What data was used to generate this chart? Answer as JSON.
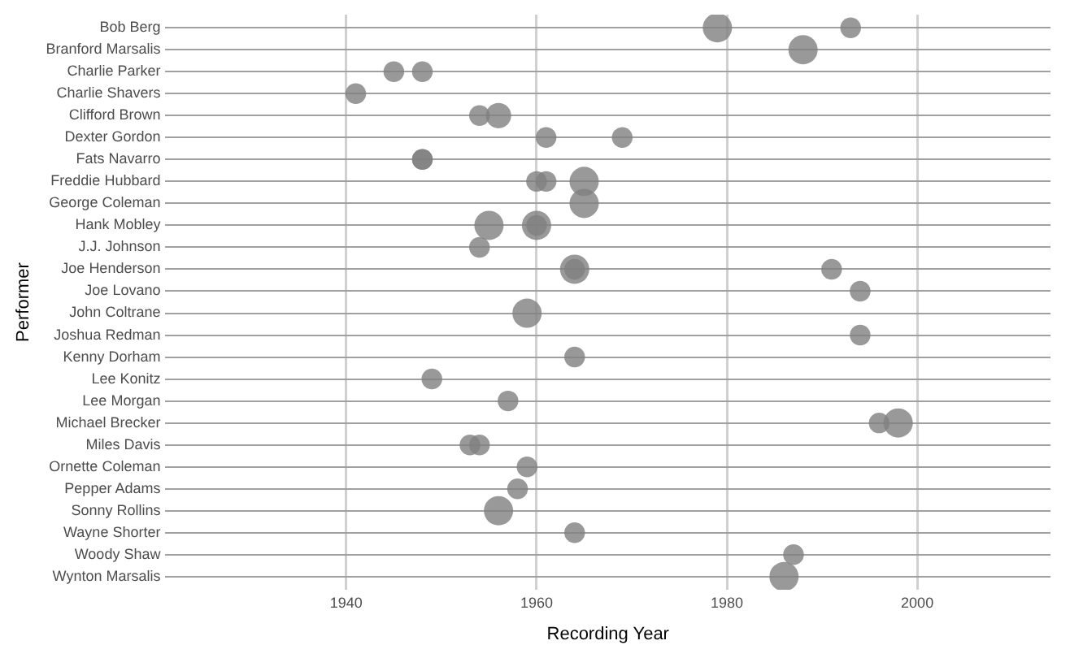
{
  "chart_data": {
    "type": "bubble",
    "orientation": "horizontal",
    "xlabel": "Recording Year",
    "ylabel": "Performer",
    "categories": [
      "Bob Berg",
      "Branford Marsalis",
      "Charlie Parker",
      "Charlie Shavers",
      "Clifford Brown",
      "Dexter Gordon",
      "Fats Navarro",
      "Freddie Hubbard",
      "George Coleman",
      "Hank Mobley",
      "J.J. Johnson",
      "Joe Henderson",
      "Joe Lovano",
      "John Coltrane",
      "Joshua Redman",
      "Kenny Dorham",
      "Lee Konitz",
      "Lee Morgan",
      "Michael Brecker",
      "Miles Davis",
      "Ornette Coleman",
      "Pepper Adams",
      "Sonny Rollins",
      "Wayne Shorter",
      "Woody Shaw",
      "Wynton Marsalis"
    ],
    "series": [
      {
        "color": "#808080",
        "values": [
          1979,
          1988,
          1945,
          1941,
          1954,
          1961,
          1948,
          1960,
          1965,
          1955,
          1954,
          1964,
          1994,
          1959,
          1994,
          1964,
          1949,
          1957,
          1996,
          1953,
          1959,
          1958,
          1956,
          1964,
          1987,
          1986
        ],
        "sizes": [
          1,
          1,
          0.5,
          0.5,
          0.5,
          0.5,
          0.5,
          0.5,
          1,
          1,
          0.5,
          0.5,
          0.5,
          1,
          0.5,
          0.5,
          0.5,
          0.5,
          0.5,
          0.5,
          0.5,
          0.5,
          1,
          0.5,
          0.5,
          1
        ]
      },
      {
        "color": "#808080",
        "values": [
          1993,
          null,
          1948,
          null,
          1956,
          1969,
          1948,
          1961,
          null,
          1960,
          null,
          1964,
          null,
          null,
          null,
          null,
          null,
          null,
          1998,
          1954,
          null,
          null,
          null,
          null,
          null,
          null
        ],
        "sizes": [
          0.5,
          null,
          0.5,
          null,
          0.75,
          0.5,
          0.5,
          0.5,
          null,
          1,
          null,
          1,
          null,
          null,
          null,
          null,
          null,
          null,
          1,
          0.5,
          null,
          null,
          null,
          null,
          null,
          null
        ]
      },
      {
        "color": "#808080",
        "values": [
          null,
          null,
          null,
          null,
          null,
          null,
          null,
          1965,
          null,
          1960,
          null,
          1991,
          null,
          null,
          null,
          null,
          null,
          null,
          null,
          null,
          null,
          null,
          null,
          null,
          null,
          null
        ],
        "sizes": [
          null,
          null,
          null,
          null,
          null,
          null,
          null,
          1,
          null,
          0.5,
          null,
          0.5,
          null,
          null,
          null,
          null,
          null,
          null,
          null,
          null,
          null,
          null,
          null,
          null,
          null,
          null
        ]
      }
    ],
    "xlim": [
      1921,
      2014
    ],
    "xticks": [
      1940,
      1960,
      1980,
      2000
    ],
    "grid": true,
    "legend": false
  }
}
